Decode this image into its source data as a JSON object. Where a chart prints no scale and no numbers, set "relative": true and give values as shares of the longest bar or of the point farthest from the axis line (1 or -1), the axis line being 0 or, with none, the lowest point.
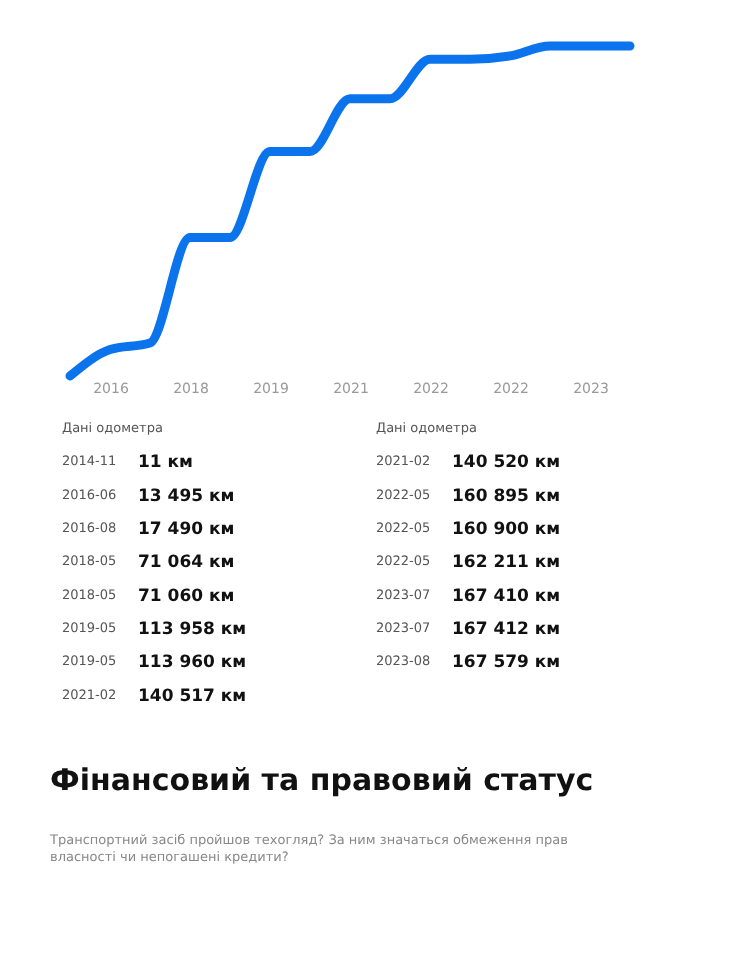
{
  "chart_data": {
    "type": "line",
    "categories": [
      null,
      "2016",
      null,
      "2018",
      null,
      "2019",
      null,
      "2021",
      null,
      "2022",
      null,
      "2022",
      null,
      "2023",
      null
    ],
    "values": [
      0,
      0.08,
      0.1,
      0.42,
      0.42,
      0.68,
      0.68,
      0.84,
      0.84,
      0.96,
      0.96,
      0.97,
      1.0,
      1.0,
      1.0
    ],
    "relative": true,
    "color": "#0b74ec",
    "annotations": [
      "Дані одометра",
      "Дані одометра",
      "2014-11",
      "2016-06",
      "2016-08",
      "2018-05",
      "2018-05",
      "2019-05",
      "2019-05",
      "2021-02",
      "2021-02",
      "2022-05",
      "2022-05",
      "2022-05",
      "2023-07",
      "2023-07",
      "2023-08",
      "11 км",
      "13 495 км",
      "17 490 км",
      "71 064 км",
      "71 060 км",
      "113 958 км",
      "113 960 км",
      "140 517 км",
      "140 520 км",
      "160 895 км",
      "160 900 км",
      "162 211 км",
      "167 410 км",
      "167 412 км",
      "167 579 км",
      "Фінансовий та правовий статус",
      "Транспортний засіб пройшов техогляд? За ним значаться обмеження прав власності чи непогашені кредити?"
    ]
  }
}
